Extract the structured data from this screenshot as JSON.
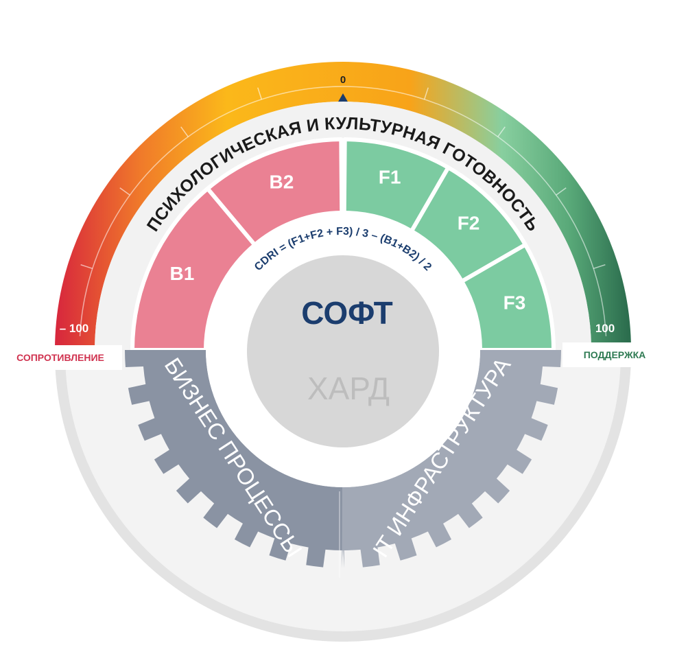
{
  "scale": {
    "min_label": "– 100",
    "zero_label": "0",
    "max_label": "100",
    "left_caption": "СОПРОТИВЛЕНИЕ",
    "right_caption": "ПОДДЕРЖКА",
    "gradient_colors": [
      "#d7263d",
      "#f07a2a",
      "#fbb81a",
      "#f8a319",
      "#88cf9f",
      "#58a878",
      "#2c6e4e"
    ],
    "negative_caption_color": "#d0324f",
    "positive_caption_color": "#2e7a52"
  },
  "ring_title": "ПСИХОЛОГИЧЕСКАЯ И КУЛЬТУРНАЯ ГОТОВНОСТЬ",
  "formula": "CDRI = (F1+F2 + F3) / 3 – (B1+B2) / 2",
  "barriers": {
    "color": "#ea8193",
    "items": [
      "B1",
      "B2"
    ]
  },
  "facilitators": {
    "color": "#7ccba1",
    "items": [
      "F1",
      "F2",
      "F3"
    ]
  },
  "center": {
    "soft_label": "СОФТ",
    "hard_label": "ХАРД",
    "soft_color": "#1b3d6e",
    "hard_color": "#bdbdbd"
  },
  "hard_layer": {
    "left_label": "БИЗНЕС ПРОЦЕССЫ",
    "right_label": "IT ИНФРАСТРУКТУРА",
    "left_color": "#8a93a3",
    "right_color": "#a2a9b6"
  }
}
